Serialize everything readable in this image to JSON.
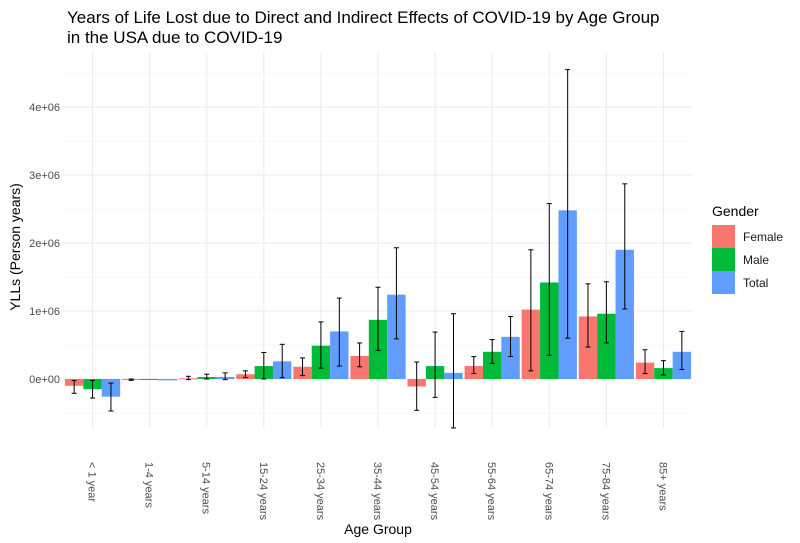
{
  "chart_data": {
    "type": "bar",
    "title_lines": [
      "Years of Life Lost due to Direct and Indirect Effects of COVID-19 by Age Group",
      "in the USA due to COVID-19"
    ],
    "xlabel": "Age Group",
    "ylabel": "YLLs (Person years)",
    "ylim": [
      -750000,
      4700000
    ],
    "y_ticks": [
      0,
      1000000,
      2000000,
      3000000,
      4000000
    ],
    "y_tick_labels": [
      "0e+00",
      "1e+06",
      "2e+06",
      "3e+06",
      "4e+06"
    ],
    "grid": true,
    "legend_title": "Gender",
    "legend_position": "right",
    "categories": [
      "< 1 year",
      "1-4 years",
      "5-14 years",
      "15-24 years",
      "25-34 years",
      "35-44 years",
      "45-54 years",
      "55-64 years",
      "65-74 years",
      "75-84 years",
      "85+ years"
    ],
    "series": [
      {
        "name": "Female",
        "color": "#F8766D",
        "values": [
          -100000,
          -10000,
          10000,
          70000,
          180000,
          340000,
          -110000,
          190000,
          1020000,
          920000,
          240000
        ],
        "error_low": [
          -210000,
          -20000,
          -10000,
          20000,
          50000,
          180000,
          -460000,
          80000,
          120000,
          470000,
          80000
        ],
        "error_high": [
          -20000,
          0,
          40000,
          120000,
          310000,
          530000,
          250000,
          330000,
          1900000,
          1400000,
          430000
        ]
      },
      {
        "name": "Male",
        "color": "#00BA38",
        "values": [
          -150000,
          -10000,
          30000,
          190000,
          490000,
          870000,
          190000,
          400000,
          1420000,
          960000,
          160000
        ],
        "error_low": [
          -280000,
          -30000,
          0,
          0,
          160000,
          420000,
          -270000,
          230000,
          350000,
          530000,
          60000
        ],
        "error_high": [
          -20000,
          10000,
          70000,
          390000,
          840000,
          1350000,
          690000,
          580000,
          2580000,
          1430000,
          270000
        ],
        "draw_error": [
          true,
          false,
          true,
          true,
          true,
          true,
          true,
          true,
          true,
          true,
          true
        ]
      },
      {
        "name": "Total",
        "color": "#619CFF",
        "values": [
          -260000,
          -20000,
          30000,
          260000,
          700000,
          1240000,
          90000,
          620000,
          2480000,
          1900000,
          400000
        ],
        "error_low": [
          -470000,
          -40000,
          -10000,
          20000,
          190000,
          590000,
          -720000,
          330000,
          600000,
          1030000,
          140000
        ],
        "error_high": [
          -60000,
          0,
          90000,
          510000,
          1190000,
          1930000,
          960000,
          920000,
          4550000,
          2870000,
          700000
        ],
        "draw_error": [
          true,
          false,
          true,
          true,
          true,
          true,
          true,
          true,
          true,
          true,
          true
        ]
      }
    ]
  }
}
